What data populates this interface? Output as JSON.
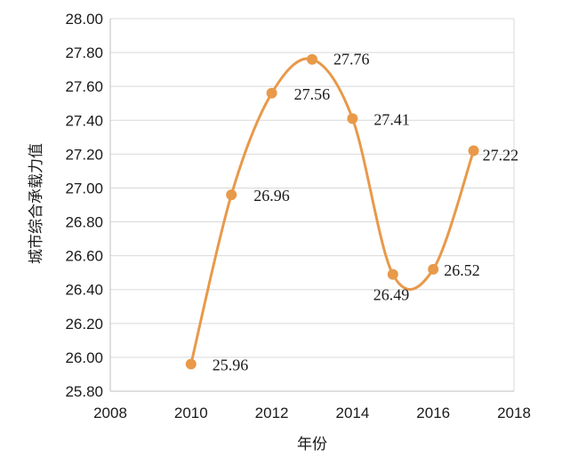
{
  "chart_data": {
    "type": "line",
    "title": "",
    "xlabel": "年份",
    "ylabel": "城市综合承载力值",
    "xlim": [
      2008,
      2018
    ],
    "ylim": [
      25.8,
      28.0
    ],
    "x_ticks": [
      2008,
      2010,
      2012,
      2014,
      2016,
      2018
    ],
    "x_tick_labels": [
      "2008",
      "2010",
      "2012",
      "2014",
      "2016",
      "2018"
    ],
    "y_ticks": [
      25.8,
      26.0,
      26.2,
      26.4,
      26.6,
      26.8,
      27.0,
      27.2,
      27.4,
      27.6,
      27.8,
      28.0
    ],
    "y_tick_labels": [
      "25.80",
      "26.00",
      "26.20",
      "26.40",
      "26.60",
      "26.80",
      "27.00",
      "27.20",
      "27.40",
      "27.60",
      "27.80",
      "28.00"
    ],
    "grid": "horizontal",
    "legend": "none",
    "smooth": true,
    "series": [
      {
        "color": "#E8994A",
        "x": [
          2010,
          2011,
          2012,
          2013,
          2014,
          2015,
          2016,
          2017
        ],
        "values": [
          25.96,
          26.96,
          27.56,
          27.76,
          27.41,
          26.49,
          26.52,
          27.22
        ],
        "labels": [
          "25.96",
          "26.96",
          "27.56",
          "27.76",
          "27.41",
          "26.49",
          "26.52",
          "27.22"
        ]
      }
    ]
  }
}
